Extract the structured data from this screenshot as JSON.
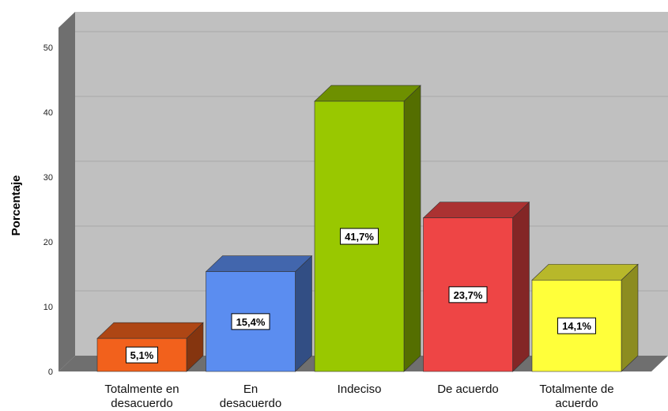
{
  "chart_data": {
    "type": "bar",
    "categories": [
      [
        "Totalmente en",
        "desacuerdo"
      ],
      [
        "En",
        "desacuerdo"
      ],
      [
        "Indeciso"
      ],
      [
        "De acuerdo"
      ],
      [
        "Totalmente de",
        "acuerdo"
      ]
    ],
    "values": [
      5.1,
      15.4,
      41.7,
      23.7,
      14.1
    ],
    "data_labels": [
      "5,1%",
      "15,4%",
      "41,7%",
      "23,7%",
      "14,1%"
    ],
    "colors": [
      "#f2611c",
      "#5b8df0",
      "#99c800",
      "#ee4545",
      "#ffff3a"
    ],
    "ylabel": "Porcentaje",
    "ylim": [
      0,
      50
    ],
    "yticks": [
      0,
      10,
      20,
      30,
      40,
      50
    ],
    "grid": true,
    "style": "3d"
  }
}
